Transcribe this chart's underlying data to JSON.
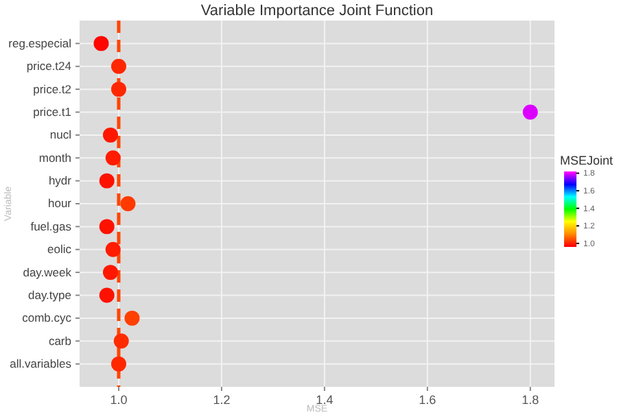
{
  "chart_data": {
    "type": "scatter",
    "orientation": "horizontal",
    "title": "Variable Importance Joint Function",
    "xlabel": "MSE",
    "ylabel": "Variable",
    "clabel": "MSEJoint",
    "categories": [
      "reg.especial",
      "price.t24",
      "price.t2",
      "price.t1",
      "nucl",
      "month",
      "hydr",
      "hour",
      "fuel.gas",
      "eolic",
      "day.week",
      "day.type",
      "comb.cyc",
      "carb",
      "all.variables"
    ],
    "values": [
      0.966,
      1.0,
      1.0,
      1.8,
      0.984,
      0.989,
      0.977,
      1.018,
      0.977,
      0.989,
      0.984,
      0.977,
      1.026,
      1.005,
      1.0
    ],
    "cvalues": [
      0.966,
      1.0,
      1.0,
      1.8,
      0.984,
      0.989,
      0.977,
      1.018,
      0.977,
      0.989,
      0.984,
      0.977,
      1.026,
      1.005,
      1.0
    ],
    "xlim": [
      0.924,
      1.847
    ],
    "xticks": [
      {
        "value": 1,
        "label": "1.0"
      },
      1.2,
      1.4,
      1.6,
      1.8
    ],
    "clim": [
      0.96,
      1.82
    ],
    "cticks": [
      {
        "value": 1,
        "label": "1.0"
      },
      1.2,
      1.4,
      1.6,
      1.8
    ],
    "ref_lines": [
      {
        "axis": "x",
        "value": 1.0,
        "color": "#ff4500",
        "line_style": "dashed"
      }
    ],
    "grid": true,
    "marker": "circle"
  }
}
